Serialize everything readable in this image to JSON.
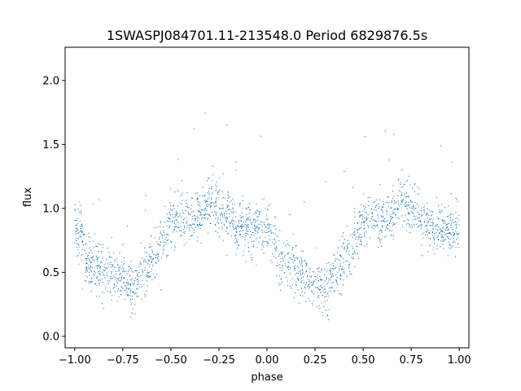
{
  "chart_data": {
    "type": "scatter",
    "title": "1SWASPJ084701.11-213548.0 Period 6829876.5s",
    "xlabel": "phase",
    "ylabel": "flux",
    "xlim": [
      -1.05,
      1.05
    ],
    "ylim": [
      -0.09,
      2.26
    ],
    "xticks": [
      -1.0,
      -0.75,
      -0.5,
      -0.25,
      0.0,
      0.25,
      0.5,
      0.75,
      1.0
    ],
    "xtick_labels": [
      "−1.00",
      "−0.75",
      "−0.50",
      "−0.25",
      "0.00",
      "0.25",
      "0.50",
      "0.75",
      "1.00"
    ],
    "yticks": [
      0.0,
      0.5,
      1.0,
      1.5,
      2.0
    ],
    "ytick_labels": [
      "0.0",
      "0.5",
      "1.0",
      "1.5",
      "2.0"
    ],
    "grid": false,
    "color": "#1f77b4",
    "x_range_data": [
      -1.0,
      1.0
    ],
    "profile_phase": [
      0.0,
      0.04,
      0.06,
      0.1,
      0.15,
      0.2,
      0.25,
      0.3,
      0.35,
      0.4,
      0.45,
      0.5,
      0.55,
      0.6,
      0.65,
      0.7,
      0.75,
      0.8,
      0.85,
      0.9,
      0.95,
      1.0
    ],
    "profile_flux": [
      0.85,
      0.8,
      0.55,
      0.58,
      0.5,
      0.48,
      0.45,
      0.35,
      0.5,
      0.6,
      0.75,
      0.9,
      0.95,
      0.92,
      0.95,
      1.05,
      1.0,
      0.95,
      0.85,
      0.85,
      0.82,
      0.85
    ]
  }
}
